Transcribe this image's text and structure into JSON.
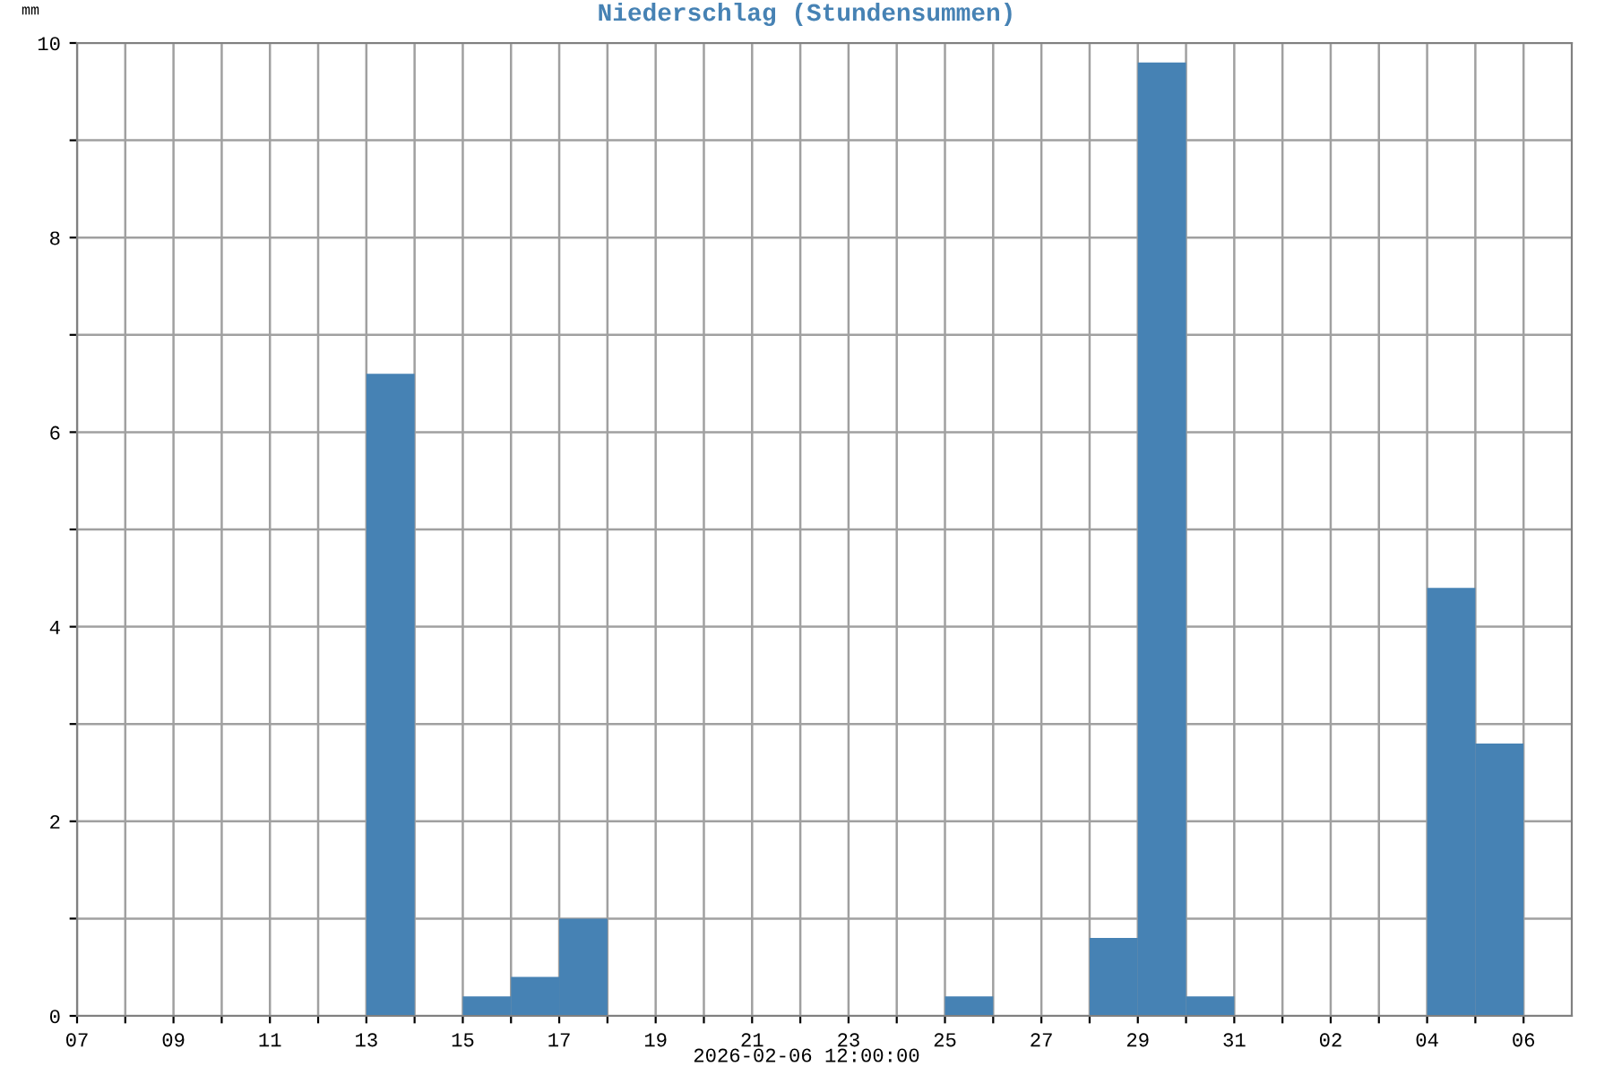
{
  "chart_data": {
    "type": "bar",
    "title": "Niederschlag (Stundensummen)",
    "ylabel": "mm",
    "xlabel": "2026-02-06 12:00:00",
    "x": [
      "2026-01-13T12:00",
      "2026-01-15T12:00",
      "2026-01-16T12:00",
      "2026-01-17T12:00",
      "2026-01-25T12:00",
      "2026-01-28T12:00",
      "2026-01-29T12:00",
      "2026-01-30T12:00",
      "2026-02-04T12:00",
      "2026-02-05T12:00"
    ],
    "series": [
      {
        "color": "#4682b4",
        "values": [
          6.6,
          0.2,
          0.4,
          1.0,
          0.2,
          0.8,
          9.8,
          0.2,
          4.4,
          2.8
        ]
      }
    ],
    "xlim": [
      "2026-01-07",
      "2026-02-07"
    ],
    "xticks": [
      {
        "value": "2026-01-07",
        "label": "07"
      },
      {
        "value": "2026-01-08",
        "label": null
      },
      {
        "value": "2026-01-09",
        "label": "09"
      },
      {
        "value": "2026-01-10",
        "label": null
      },
      {
        "value": "2026-01-11",
        "label": "11"
      },
      {
        "value": "2026-01-12",
        "label": null
      },
      {
        "value": "2026-01-13",
        "label": "13"
      },
      {
        "value": "2026-01-14",
        "label": null
      },
      {
        "value": "2026-01-15",
        "label": "15"
      },
      {
        "value": "2026-01-16",
        "label": null
      },
      {
        "value": "2026-01-17",
        "label": "17"
      },
      {
        "value": "2026-01-18",
        "label": null
      },
      {
        "value": "2026-01-19",
        "label": "19"
      },
      {
        "value": "2026-01-20",
        "label": null
      },
      {
        "value": "2026-01-21",
        "label": "21"
      },
      {
        "value": "2026-01-22",
        "label": null
      },
      {
        "value": "2026-01-23",
        "label": "23"
      },
      {
        "value": "2026-01-24",
        "label": null
      },
      {
        "value": "2026-01-25",
        "label": "25"
      },
      {
        "value": "2026-01-26",
        "label": null
      },
      {
        "value": "2026-01-27",
        "label": "27"
      },
      {
        "value": "2026-01-28",
        "label": null
      },
      {
        "value": "2026-01-29",
        "label": "29"
      },
      {
        "value": "2026-01-30",
        "label": null
      },
      {
        "value": "2026-01-31",
        "label": "31"
      },
      {
        "value": "2026-02-01",
        "label": null
      },
      {
        "value": "2026-02-02",
        "label": "02"
      },
      {
        "value": "2026-02-03",
        "label": null
      },
      {
        "value": "2026-02-04",
        "label": "04"
      },
      {
        "value": "2026-02-05",
        "label": null
      },
      {
        "value": "2026-02-06",
        "label": "06"
      }
    ],
    "ylim": [
      0,
      10
    ],
    "yticks": [
      0,
      {
        "value": 1,
        "label": null
      },
      2,
      {
        "value": 3,
        "label": null
      },
      4,
      {
        "value": 5,
        "label": null
      },
      6,
      {
        "value": 7,
        "label": null
      },
      8,
      {
        "value": 9,
        "label": null
      },
      10
    ],
    "grid": true
  }
}
